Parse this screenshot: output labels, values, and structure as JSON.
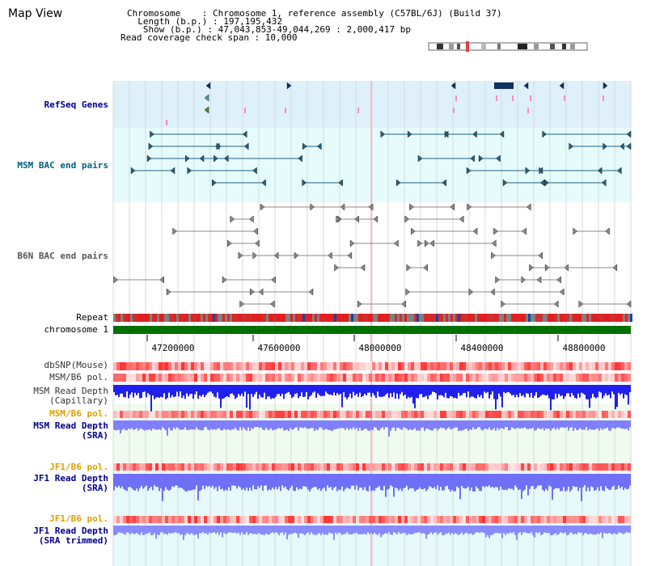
{
  "view_title": "Map View",
  "info": {
    "chromosome_line": "Chromosome    : Chromosome 1, reference assembly (C57BL/6J) (Build 37)",
    "length_line": "  Length (b.p.) : 197,195,432",
    "show_line": "   Show (b.p.) : 47,043,853-49,044,269 : 2,000,417 bp",
    "coverage_line": "Read coverage check span : 10,000"
  },
  "tracks": {
    "refseq": "RefSeq Genes",
    "msm_bac": "MSM BAC end pairs",
    "b6n_bac": "B6N BAC end pairs",
    "repeat": "Repeat",
    "chromosome": "chromosome 1",
    "dbsnp": "dbSNP(Mouse)",
    "msm_b6_pol": "MSM/B6 pol.",
    "msm_depth_cap": "MSM Read Depth\n(Capillary)",
    "msm_b6_pol2": "MSM/B6 pol.",
    "msm_depth_sra": "MSM Read Depth\n(SRA)",
    "jf1_b6_pol": "JF1/B6 pol.",
    "jf1_depth_sra": "JF1 Read Depth\n(SRA)",
    "jf1_b6_pol2": "JF1/B6 pol.",
    "jf1_depth_trim": "JF1 Read Depth\n(SRA trimmed)"
  },
  "axis": {
    "ticks": [
      "47200000",
      "47600000",
      "48000000",
      "48400000",
      "48800000"
    ]
  },
  "colors": {
    "refseq_bg": "#def0fa",
    "msm_bac_bg": "#e6fbfb",
    "label_blue": "#00008b",
    "label_teal": "#006080",
    "label_orange": "#e0a000",
    "chromosome_green": "#007000",
    "depth_blue": "#2020ee",
    "sra_blue": "#7f7fff"
  }
}
